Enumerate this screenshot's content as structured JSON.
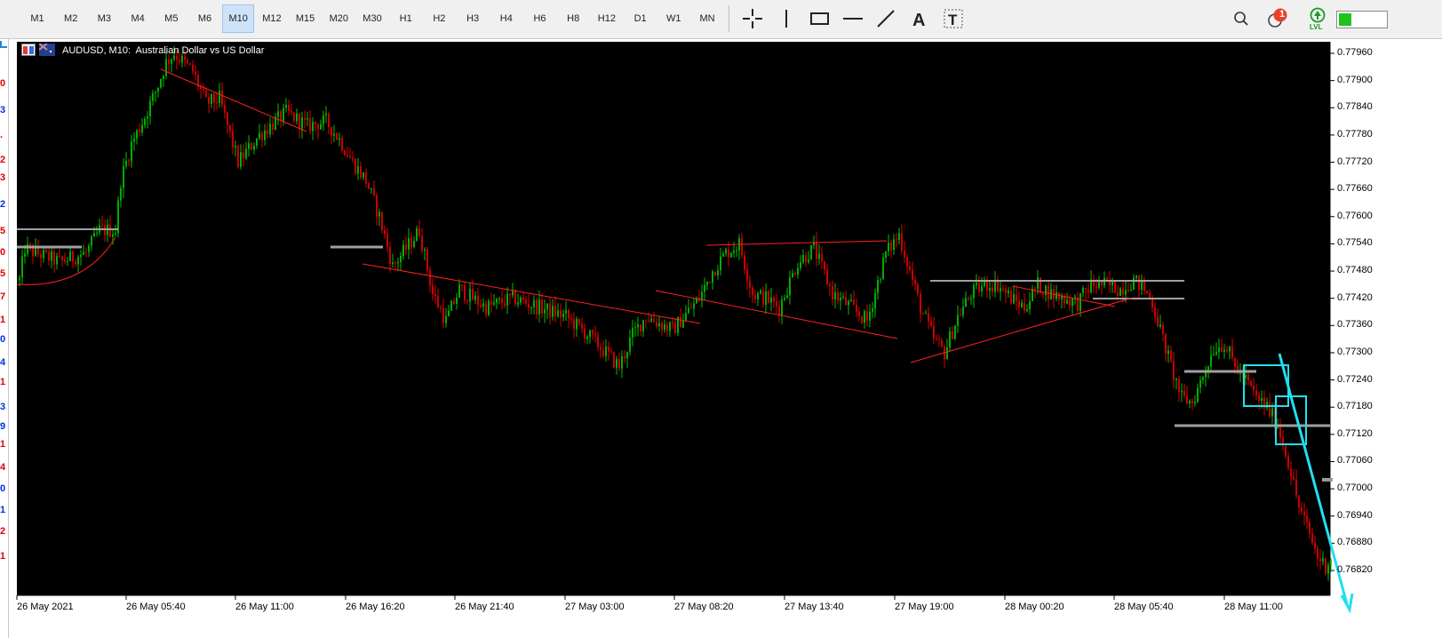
{
  "toolbar": {
    "timeframes": [
      "M1",
      "M2",
      "M3",
      "M4",
      "M5",
      "M6",
      "M10",
      "M12",
      "M15",
      "M20",
      "M30",
      "H1",
      "H2",
      "H3",
      "H4",
      "H6",
      "H8",
      "H12",
      "D1",
      "W1",
      "MN"
    ],
    "active_timeframe": "M10",
    "tools": [
      "crosshair-icon",
      "vertical-line-icon",
      "rectangle-icon",
      "horizontal-line-icon",
      "trendline-icon",
      "text-icon",
      "text-label-icon"
    ],
    "notification_count": "1",
    "lvl_label": "LVL"
  },
  "left_strip": {
    "chars": [
      {
        "t": "0",
        "c": "#e00000"
      },
      {
        "t": "3",
        "c": "#0030e0"
      },
      {
        "t": ".",
        "c": "#e00000"
      },
      {
        "t": "2",
        "c": "#e00000"
      },
      {
        "t": "3",
        "c": "#e00000"
      },
      {
        "t": "2",
        "c": "#0030e0"
      },
      {
        "t": "5",
        "c": "#e00000"
      },
      {
        "t": "0",
        "c": "#e00000"
      },
      {
        "t": "5",
        "c": "#e00000"
      },
      {
        "t": "7",
        "c": "#e00000"
      },
      {
        "t": "1",
        "c": "#e00000"
      },
      {
        "t": "0",
        "c": "#0030e0"
      },
      {
        "t": "4",
        "c": "#0030e0"
      },
      {
        "t": "1",
        "c": "#e00000"
      },
      {
        "t": "3",
        "c": "#0030e0"
      },
      {
        "t": "9",
        "c": "#0030e0"
      },
      {
        "t": "1",
        "c": "#e00000"
      },
      {
        "t": "4",
        "c": "#e00000"
      },
      {
        "t": "0",
        "c": "#0030e0"
      },
      {
        "t": "1",
        "c": "#0030e0"
      },
      {
        "t": "2",
        "c": "#e00000"
      },
      {
        "t": "1",
        "c": "#e00000"
      }
    ]
  },
  "chart": {
    "title": "AUDUSD, M10:  Australian Dollar vs US Dollar",
    "price_labels": [
      "0.77960",
      "0.77900",
      "0.77840",
      "0.77780",
      "0.77720",
      "0.77660",
      "0.77600",
      "0.77540",
      "0.77480",
      "0.77420",
      "0.77360",
      "0.77300",
      "0.77240",
      "0.77180",
      "0.77120",
      "0.77060",
      "0.77000",
      "0.76940",
      "0.76880",
      "0.76820"
    ],
    "time_labels": [
      "26 May 2021",
      "26 May 05:40",
      "26 May 11:00",
      "26 May 16:20",
      "26 May 21:40",
      "27 May 03:00",
      "27 May 08:20",
      "27 May 13:40",
      "27 May 19:00",
      "28 May 00:20",
      "28 May 05:40",
      "28 May 11:00"
    ],
    "colors": {
      "bg": "#000000",
      "bull": "#00c000",
      "bear": "#e00000",
      "trend": "#ff2020",
      "level": "#a0a0a0",
      "cyan": "#20e0f0"
    }
  },
  "chart_data": {
    "type": "candlestick",
    "title": "AUDUSD, M10:  Australian Dollar vs US Dollar",
    "ylim": [
      0.7679,
      0.7799
    ],
    "anchors": [
      [
        0,
        0.7746
      ],
      [
        2,
        0.7753
      ],
      [
        15,
        0.775
      ],
      [
        25,
        0.7752
      ],
      [
        30,
        0.7757
      ],
      [
        36,
        0.7757
      ],
      [
        38,
        0.7768
      ],
      [
        42,
        0.7776
      ],
      [
        47,
        0.7782
      ],
      [
        52,
        0.7789
      ],
      [
        55,
        0.7794
      ],
      [
        58,
        0.7796
      ],
      [
        65,
        0.7792
      ],
      [
        70,
        0.7785
      ],
      [
        75,
        0.7786
      ],
      [
        82,
        0.7772
      ],
      [
        90,
        0.7778
      ],
      [
        100,
        0.7783
      ],
      [
        108,
        0.778
      ],
      [
        115,
        0.7781
      ],
      [
        120,
        0.7777
      ],
      [
        125,
        0.7772
      ],
      [
        130,
        0.7768
      ],
      [
        135,
        0.776
      ],
      [
        140,
        0.7749
      ],
      [
        145,
        0.7753
      ],
      [
        150,
        0.7757
      ],
      [
        155,
        0.7743
      ],
      [
        160,
        0.7737
      ],
      [
        165,
        0.7744
      ],
      [
        175,
        0.774
      ],
      [
        185,
        0.7742
      ],
      [
        195,
        0.774
      ],
      [
        205,
        0.7738
      ],
      [
        215,
        0.7733
      ],
      [
        220,
        0.773
      ],
      [
        225,
        0.7727
      ],
      [
        230,
        0.7734
      ],
      [
        235,
        0.7738
      ],
      [
        245,
        0.7735
      ],
      [
        255,
        0.7742
      ],
      [
        260,
        0.7748
      ],
      [
        265,
        0.7752
      ],
      [
        270,
        0.7754
      ],
      [
        275,
        0.7743
      ],
      [
        280,
        0.7742
      ],
      [
        285,
        0.774
      ],
      [
        292,
        0.775
      ],
      [
        298,
        0.7753
      ],
      [
        305,
        0.7743
      ],
      [
        312,
        0.774
      ],
      [
        318,
        0.7737
      ],
      [
        325,
        0.7752
      ],
      [
        330,
        0.7756
      ],
      [
        334,
        0.7748
      ],
      [
        338,
        0.774
      ],
      [
        343,
        0.7733
      ],
      [
        347,
        0.773
      ],
      [
        352,
        0.7738
      ],
      [
        357,
        0.7743
      ],
      [
        362,
        0.7745
      ],
      [
        367,
        0.7745
      ],
      [
        372,
        0.7742
      ],
      [
        377,
        0.774
      ],
      [
        382,
        0.7745
      ],
      [
        387,
        0.7743
      ],
      [
        392,
        0.7742
      ],
      [
        397,
        0.7741
      ],
      [
        402,
        0.7745
      ],
      [
        407,
        0.7745
      ],
      [
        413,
        0.7744
      ],
      [
        418,
        0.7746
      ],
      [
        422,
        0.7744
      ],
      [
        425,
        0.7741
      ],
      [
        428,
        0.7735
      ],
      [
        432,
        0.7727
      ],
      [
        436,
        0.772
      ],
      [
        440,
        0.7719
      ],
      [
        444,
        0.7725
      ],
      [
        448,
        0.7731
      ],
      [
        452,
        0.7732
      ],
      [
        456,
        0.7727
      ],
      [
        460,
        0.7724
      ],
      [
        464,
        0.772
      ],
      [
        468,
        0.7718
      ],
      [
        472,
        0.7714
      ],
      [
        476,
        0.7706
      ],
      [
        480,
        0.7696
      ],
      [
        484,
        0.769
      ],
      [
        487,
        0.7685
      ],
      [
        490,
        0.7683
      ],
      [
        492,
        0.7685
      ]
    ],
    "price_tag_value": 0.7702
  }
}
